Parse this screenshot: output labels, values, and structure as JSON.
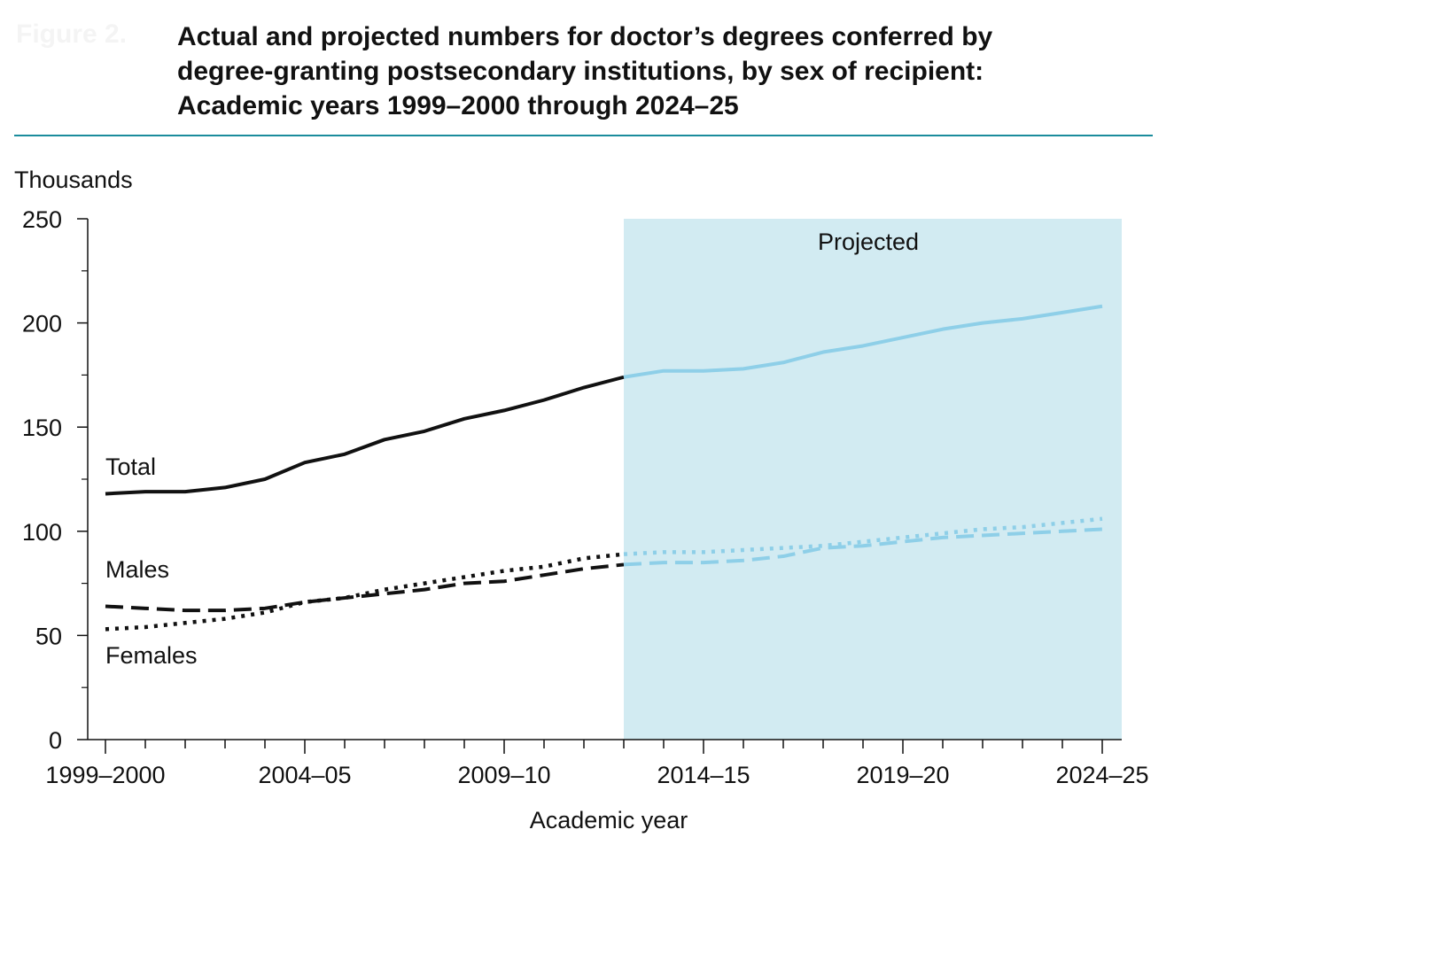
{
  "figure_label": "Figure 2.",
  "title_lines": [
    "Actual and projected numbers for doctor’s degrees conferred by",
    "degree-granting postsecondary institutions, by sex of recipient:",
    "Academic years 1999–2000 through 2024–25"
  ],
  "colors": {
    "actual": "#111111",
    "projected_line": "#8ecfe8",
    "projected_band": "#d2ebf2",
    "rule": "#1a8c9c"
  },
  "chart_data": {
    "type": "line",
    "ylabel": "Thousands",
    "xlabel": "Academic year",
    "ylim": [
      0,
      250
    ],
    "y_ticks": [
      0,
      50,
      100,
      150,
      200,
      250
    ],
    "x_tick_labels": [
      "1999–2000",
      "2004–05",
      "2009–10",
      "2014–15",
      "2019–20",
      "2024–25"
    ],
    "x_tick_label_index": [
      0,
      5,
      10,
      15,
      20,
      25
    ],
    "categories": [
      "1999–2000",
      "2000–01",
      "2001–02",
      "2002–03",
      "2003–04",
      "2004–05",
      "2005–06",
      "2006–07",
      "2007–08",
      "2008–09",
      "2009–10",
      "2010–11",
      "2011–12",
      "2012–13",
      "2013–14",
      "2014–15",
      "2015–16",
      "2016–17",
      "2017–18",
      "2018–19",
      "2019–20",
      "2020–21",
      "2021–22",
      "2022–23",
      "2023–24",
      "2024–25"
    ],
    "projection_start_index": 13,
    "projected_label": "Projected",
    "grid": false,
    "series": [
      {
        "name": "Total",
        "style": "solid",
        "values": [
          118,
          119,
          119,
          121,
          125,
          133,
          137,
          144,
          148,
          154,
          158,
          163,
          169,
          174,
          177,
          177,
          178,
          181,
          186,
          189,
          193,
          197,
          200,
          202,
          205,
          208
        ]
      },
      {
        "name": "Males",
        "style": "dashed",
        "values": [
          64,
          63,
          62,
          62,
          63,
          66,
          68,
          70,
          72,
          75,
          76,
          79,
          82,
          84,
          85,
          85,
          86,
          88,
          92,
          93,
          95,
          97,
          98,
          99,
          100,
          101
        ]
      },
      {
        "name": "Females",
        "style": "dotted",
        "values": [
          53,
          54,
          56,
          58,
          61,
          66,
          68,
          72,
          75,
          78,
          81,
          83,
          87,
          89,
          90,
          90,
          91,
          92,
          93,
          95,
          97,
          99,
          101,
          102,
          104,
          106
        ]
      }
    ]
  }
}
